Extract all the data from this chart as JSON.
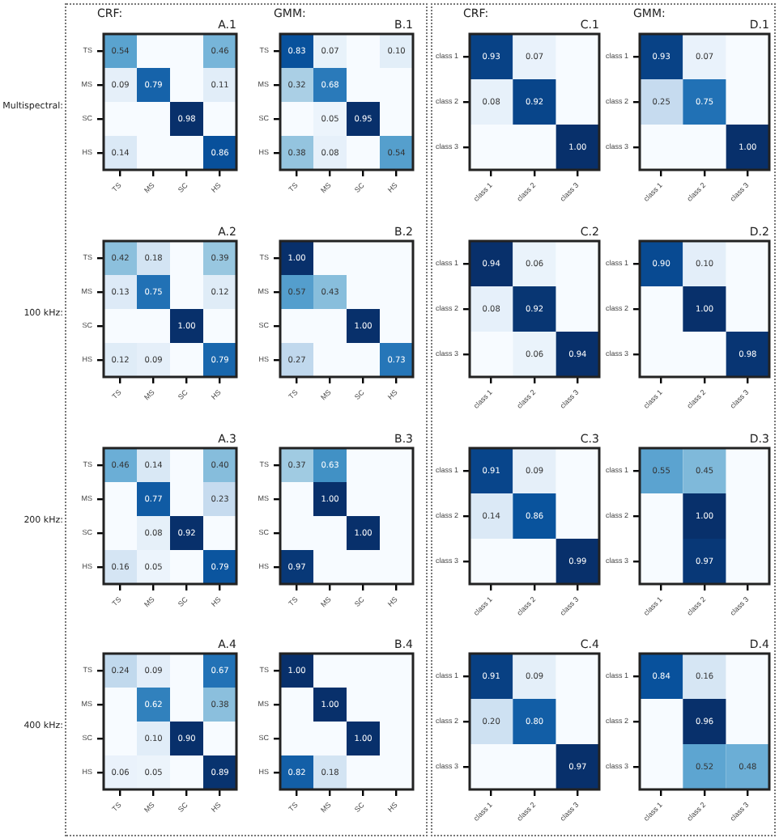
{
  "chart_data": [
    {
      "type": "heatmap",
      "title": "A.1",
      "subtitle": "CRF:",
      "ylabel": "Multispectral:",
      "data_labels": true,
      "categories": [
        "TS",
        "MS",
        "SC",
        "HS"
      ],
      "y_categories": [
        "TS",
        "MS",
        "SC",
        "HS"
      ],
      "cells": [
        [
          0.54,
          null,
          null,
          0.46
        ],
        [
          0.09,
          0.79,
          null,
          0.11
        ],
        [
          null,
          null,
          0.98,
          null
        ],
        [
          0.14,
          null,
          null,
          0.86
        ]
      ],
      "cell_labels": [
        [
          "0.54",
          null,
          null,
          "0.46"
        ],
        [
          "0.09",
          "0.79",
          null,
          "0.11"
        ],
        [
          null,
          null,
          "0.98",
          null
        ],
        [
          "0.14",
          null,
          null,
          "0.86"
        ]
      ]
    },
    {
      "type": "heatmap",
      "title": "B.1",
      "subtitle": "GMM:",
      "data_labels": true,
      "categories": [
        "TS",
        "MS",
        "SC",
        "HS"
      ],
      "y_categories": [
        "TS",
        "MS",
        "SC",
        "HS"
      ],
      "cells": [
        [
          0.83,
          0.07,
          null,
          0.1
        ],
        [
          0.32,
          0.68,
          null,
          null
        ],
        [
          null,
          0.05,
          0.95,
          null
        ],
        [
          0.38,
          0.08,
          null,
          0.54
        ]
      ],
      "cell_labels": [
        [
          "0.83",
          "0.07",
          null,
          "0.10"
        ],
        [
          "0.32",
          "0.68",
          null,
          null
        ],
        [
          null,
          "0.05",
          "0.95",
          null
        ],
        [
          "0.38",
          "0.08",
          null,
          "0.54"
        ]
      ]
    },
    {
      "type": "heatmap",
      "title": "C.1",
      "subtitle": "CRF:",
      "data_labels": true,
      "categories": [
        "class 1",
        "class 2",
        "class 3"
      ],
      "y_categories": [
        "class 1",
        "class 2",
        "class 3"
      ],
      "cells": [
        [
          0.93,
          0.07,
          null
        ],
        [
          0.08,
          0.92,
          null
        ],
        [
          null,
          null,
          1.0
        ]
      ],
      "cell_labels": [
        [
          "0.93",
          "0.07",
          null
        ],
        [
          "0.08",
          "0.92",
          null
        ],
        [
          null,
          null,
          "1.00"
        ]
      ]
    },
    {
      "type": "heatmap",
      "title": "D.1",
      "subtitle": "GMM:",
      "data_labels": true,
      "categories": [
        "class 1",
        "class 2",
        "class 3"
      ],
      "y_categories": [
        "class 1",
        "class 2",
        "class 3"
      ],
      "cells": [
        [
          0.93,
          0.07,
          null
        ],
        [
          0.25,
          0.75,
          null
        ],
        [
          null,
          null,
          1.0
        ]
      ],
      "cell_labels": [
        [
          "0.93",
          "0.07",
          null
        ],
        [
          "0.25",
          "0.75",
          null
        ],
        [
          null,
          null,
          "1.00"
        ]
      ]
    },
    {
      "type": "heatmap",
      "title": "A.2",
      "ylabel": "100 kHz:",
      "data_labels": true,
      "categories": [
        "TS",
        "MS",
        "SC",
        "HS"
      ],
      "y_categories": [
        "TS",
        "MS",
        "SC",
        "HS"
      ],
      "cells": [
        [
          0.42,
          0.18,
          null,
          0.39
        ],
        [
          0.13,
          0.75,
          null,
          0.12
        ],
        [
          null,
          null,
          1.0,
          null
        ],
        [
          0.12,
          0.09,
          null,
          0.79
        ]
      ],
      "cell_labels": [
        [
          "0.42",
          "0.18",
          null,
          "0.39"
        ],
        [
          "0.13",
          "0.75",
          null,
          "0.12"
        ],
        [
          null,
          null,
          "1.00",
          null
        ],
        [
          "0.12",
          "0.09",
          null,
          "0.79"
        ]
      ]
    },
    {
      "type": "heatmap",
      "title": "B.2",
      "data_labels": true,
      "categories": [
        "TS",
        "MS",
        "SC",
        "HS"
      ],
      "y_categories": [
        "TS",
        "MS",
        "SC",
        "HS"
      ],
      "cells": [
        [
          1.0,
          null,
          null,
          null
        ],
        [
          0.57,
          0.43,
          null,
          null
        ],
        [
          null,
          null,
          1.0,
          null
        ],
        [
          0.27,
          null,
          null,
          0.73
        ]
      ],
      "cell_labels": [
        [
          "1.00",
          null,
          null,
          null
        ],
        [
          "0.57",
          "0.43",
          null,
          null
        ],
        [
          null,
          null,
          "1.00",
          null
        ],
        [
          "0.27",
          null,
          null,
          "0.73"
        ]
      ]
    },
    {
      "type": "heatmap",
      "title": "C.2",
      "data_labels": true,
      "categories": [
        "class 1",
        "class 2",
        "class 3"
      ],
      "y_categories": [
        "class 1",
        "class 2",
        "class 3"
      ],
      "cells": [
        [
          0.94,
          0.06,
          null
        ],
        [
          0.08,
          0.92,
          null
        ],
        [
          null,
          0.06,
          0.94
        ]
      ],
      "cell_labels": [
        [
          "0.94",
          "0.06",
          null
        ],
        [
          "0.08",
          "0.92",
          null
        ],
        [
          null,
          "0.06",
          "0.94"
        ]
      ]
    },
    {
      "type": "heatmap",
      "title": "D.2",
      "data_labels": true,
      "categories": [
        "class 1",
        "class 2",
        "class 3"
      ],
      "y_categories": [
        "class 1",
        "class 2",
        "class 3"
      ],
      "cells": [
        [
          0.9,
          0.1,
          null
        ],
        [
          null,
          1.0,
          null
        ],
        [
          null,
          null,
          0.98
        ]
      ],
      "cell_labels": [
        [
          "0.90",
          "0.10",
          null
        ],
        [
          null,
          "1.00",
          null
        ],
        [
          null,
          null,
          "0.98"
        ]
      ]
    },
    {
      "type": "heatmap",
      "title": "A.3",
      "ylabel": "200 kHz:",
      "data_labels": true,
      "categories": [
        "TS",
        "MS",
        "SC",
        "HS"
      ],
      "y_categories": [
        "TS",
        "MS",
        "SC",
        "HS"
      ],
      "cells": [
        [
          0.46,
          0.14,
          null,
          0.4
        ],
        [
          null,
          0.77,
          null,
          0.23
        ],
        [
          null,
          0.08,
          0.92,
          null
        ],
        [
          0.16,
          0.05,
          null,
          0.79
        ]
      ],
      "cell_labels": [
        [
          "0.46",
          "0.14",
          null,
          "0.40"
        ],
        [
          null,
          "0.77",
          null,
          "0.23"
        ],
        [
          null,
          "0.08",
          "0.92",
          null
        ],
        [
          "0.16",
          "0.05",
          null,
          "0.79"
        ]
      ]
    },
    {
      "type": "heatmap",
      "title": "B.3",
      "data_labels": true,
      "categories": [
        "TS",
        "MS",
        "SC",
        "HS"
      ],
      "y_categories": [
        "TS",
        "MS",
        "SC",
        "HS"
      ],
      "cells": [
        [
          0.37,
          0.63,
          null,
          null
        ],
        [
          null,
          1.0,
          null,
          null
        ],
        [
          null,
          null,
          1.0,
          null
        ],
        [
          0.97,
          null,
          null,
          null
        ]
      ],
      "cell_labels": [
        [
          "0.37",
          "0.63",
          null,
          null
        ],
        [
          null,
          "1.00",
          null,
          null
        ],
        [
          null,
          null,
          "1.00",
          null
        ],
        [
          "0.97",
          null,
          null,
          null
        ]
      ]
    },
    {
      "type": "heatmap",
      "title": "C.3",
      "data_labels": true,
      "categories": [
        "class 1",
        "class 2",
        "class 3"
      ],
      "y_categories": [
        "class 1",
        "class 2",
        "class 3"
      ],
      "cells": [
        [
          0.91,
          0.09,
          null
        ],
        [
          0.14,
          0.86,
          null
        ],
        [
          null,
          null,
          0.99
        ]
      ],
      "cell_labels": [
        [
          "0.91",
          "0.09",
          null
        ],
        [
          "0.14",
          "0.86",
          null
        ],
        [
          null,
          null,
          "0.99"
        ]
      ]
    },
    {
      "type": "heatmap",
      "title": "D.3",
      "data_labels": true,
      "categories": [
        "class 1",
        "class 2",
        "class 3"
      ],
      "y_categories": [
        "class 1",
        "class 2",
        "class 3"
      ],
      "cells": [
        [
          0.55,
          0.45,
          null
        ],
        [
          null,
          1.0,
          null
        ],
        [
          null,
          0.97,
          null
        ]
      ],
      "cell_labels": [
        [
          "0.55",
          "0.45",
          null
        ],
        [
          null,
          "1.00",
          null
        ],
        [
          null,
          "0.97",
          null
        ]
      ]
    },
    {
      "type": "heatmap",
      "title": "A.4",
      "ylabel": "400 kHz:",
      "data_labels": true,
      "categories": [
        "TS",
        "MS",
        "SC",
        "HS"
      ],
      "y_categories": [
        "TS",
        "MS",
        "SC",
        "HS"
      ],
      "cells": [
        [
          0.24,
          0.09,
          null,
          0.67
        ],
        [
          null,
          0.62,
          null,
          0.38
        ],
        [
          null,
          0.1,
          0.9,
          null
        ],
        [
          0.06,
          0.05,
          null,
          0.89
        ]
      ],
      "cell_labels": [
        [
          "0.24",
          "0.09",
          null,
          "0.67"
        ],
        [
          null,
          "0.62",
          null,
          "0.38"
        ],
        [
          null,
          "0.10",
          "0.90",
          null
        ],
        [
          "0.06",
          "0.05",
          null,
          "0.89"
        ]
      ]
    },
    {
      "type": "heatmap",
      "title": "B.4",
      "data_labels": true,
      "categories": [
        "TS",
        "MS",
        "SC",
        "HS"
      ],
      "y_categories": [
        "TS",
        "MS",
        "SC",
        "HS"
      ],
      "cells": [
        [
          1.0,
          null,
          null,
          null
        ],
        [
          null,
          1.0,
          null,
          null
        ],
        [
          null,
          null,
          1.0,
          null
        ],
        [
          0.82,
          0.18,
          null,
          null
        ]
      ],
      "cell_labels": [
        [
          "1.00",
          null,
          null,
          null
        ],
        [
          null,
          "1.00",
          null,
          null
        ],
        [
          null,
          null,
          "1.00",
          null
        ],
        [
          "0.82",
          "0.18",
          null,
          null
        ]
      ]
    },
    {
      "type": "heatmap",
      "title": "C.4",
      "data_labels": true,
      "categories": [
        "class 1",
        "class 2",
        "class 3"
      ],
      "y_categories": [
        "class 1",
        "class 2",
        "class 3"
      ],
      "cells": [
        [
          0.91,
          0.09,
          null
        ],
        [
          0.2,
          0.8,
          null
        ],
        [
          null,
          null,
          0.97
        ]
      ],
      "cell_labels": [
        [
          "0.91",
          "0.09",
          null
        ],
        [
          "0.20",
          "0.80",
          null
        ],
        [
          null,
          null,
          "0.97"
        ]
      ]
    },
    {
      "type": "heatmap",
      "title": "D.4",
      "data_labels": true,
      "categories": [
        "class 1",
        "class 2",
        "class 3"
      ],
      "y_categories": [
        "class 1",
        "class 2",
        "class 3"
      ],
      "cells": [
        [
          0.84,
          0.16,
          null
        ],
        [
          null,
          0.96,
          null
        ],
        [
          null,
          0.52,
          0.48
        ]
      ],
      "cell_labels": [
        [
          "0.84",
          "0.16",
          null
        ],
        [
          null,
          "0.96",
          null
        ],
        [
          null,
          "0.52",
          "0.48"
        ]
      ]
    }
  ]
}
